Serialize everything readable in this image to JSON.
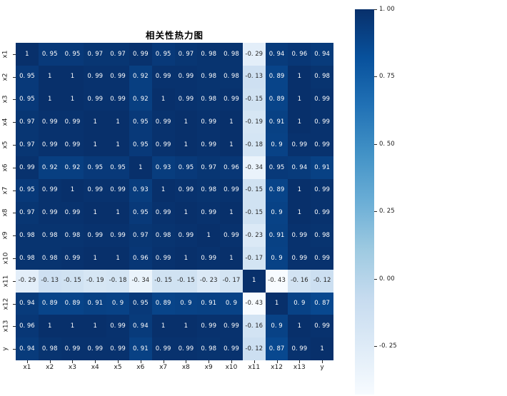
{
  "title": "相关性热力图",
  "chart_data": {
    "type": "heatmap",
    "title": "相关性热力图",
    "colormap": "Blues",
    "vmin": -0.43,
    "vmax": 1.0,
    "grid": false,
    "categories": [
      "x1",
      "x2",
      "x3",
      "x4",
      "x5",
      "x6",
      "x7",
      "x8",
      "x9",
      "x10",
      "x11",
      "x12",
      "x13",
      "y"
    ],
    "matrix": [
      [
        1,
        0.95,
        0.95,
        0.97,
        0.97,
        0.99,
        0.95,
        0.97,
        0.98,
        0.98,
        -0.29,
        0.94,
        0.96,
        0.94
      ],
      [
        0.95,
        1,
        1,
        0.99,
        0.99,
        0.92,
        0.99,
        0.99,
        0.98,
        0.98,
        -0.13,
        0.89,
        1,
        0.98
      ],
      [
        0.95,
        1,
        1,
        0.99,
        0.99,
        0.92,
        1,
        0.99,
        0.98,
        0.99,
        -0.15,
        0.89,
        1,
        0.99
      ],
      [
        0.97,
        0.99,
        0.99,
        1,
        1,
        0.95,
        0.99,
        1,
        0.99,
        1,
        -0.19,
        0.91,
        1,
        0.99
      ],
      [
        0.97,
        0.99,
        0.99,
        1,
        1,
        0.95,
        0.99,
        1,
        0.99,
        1,
        -0.18,
        0.9,
        0.99,
        0.99
      ],
      [
        0.99,
        0.92,
        0.92,
        0.95,
        0.95,
        1,
        0.93,
        0.95,
        0.97,
        0.96,
        -0.34,
        0.95,
        0.94,
        0.91
      ],
      [
        0.95,
        0.99,
        1,
        0.99,
        0.99,
        0.93,
        1,
        0.99,
        0.98,
        0.99,
        -0.15,
        0.89,
        1,
        0.99
      ],
      [
        0.97,
        0.99,
        0.99,
        1,
        1,
        0.95,
        0.99,
        1,
        0.99,
        1,
        -0.15,
        0.9,
        1,
        0.99
      ],
      [
        0.98,
        0.98,
        0.98,
        0.99,
        0.99,
        0.97,
        0.98,
        0.99,
        1,
        0.99,
        -0.23,
        0.91,
        0.99,
        0.98
      ],
      [
        0.98,
        0.98,
        0.99,
        1,
        1,
        0.96,
        0.99,
        1,
        0.99,
        1,
        -0.17,
        0.9,
        0.99,
        0.99
      ],
      [
        -0.29,
        -0.13,
        -0.15,
        -0.19,
        -0.18,
        -0.34,
        -0.15,
        -0.15,
        -0.23,
        -0.17,
        1,
        -0.43,
        -0.16,
        -0.12
      ],
      [
        0.94,
        0.89,
        0.89,
        0.91,
        0.9,
        0.95,
        0.89,
        0.9,
        0.91,
        0.9,
        -0.43,
        1,
        0.9,
        0.87
      ],
      [
        0.96,
        1,
        1,
        1,
        0.99,
        0.94,
        1,
        1,
        0.99,
        0.99,
        -0.16,
        0.9,
        1,
        0.99
      ],
      [
        0.94,
        0.98,
        0.99,
        0.99,
        0.99,
        0.91,
        0.99,
        0.99,
        0.98,
        0.99,
        -0.12,
        0.87,
        0.99,
        1
      ]
    ],
    "colorbar": {
      "tick_labels": [
        "1. 00",
        "0. 75",
        "0. 50",
        "0. 25",
        "0. 00",
        "-0. 25"
      ],
      "tick_values": [
        1.0,
        0.75,
        0.5,
        0.25,
        0.0,
        -0.25
      ],
      "position": "right"
    },
    "annotation_text_colors": {
      "on_dark": "#ffffff",
      "on_light": "#262626"
    },
    "colormap_anchors": [
      "#f7fbff",
      "#deebf7",
      "#c6dbef",
      "#9ecae1",
      "#6baed6",
      "#4292c6",
      "#2171b5",
      "#08519c",
      "#08306b"
    ]
  }
}
